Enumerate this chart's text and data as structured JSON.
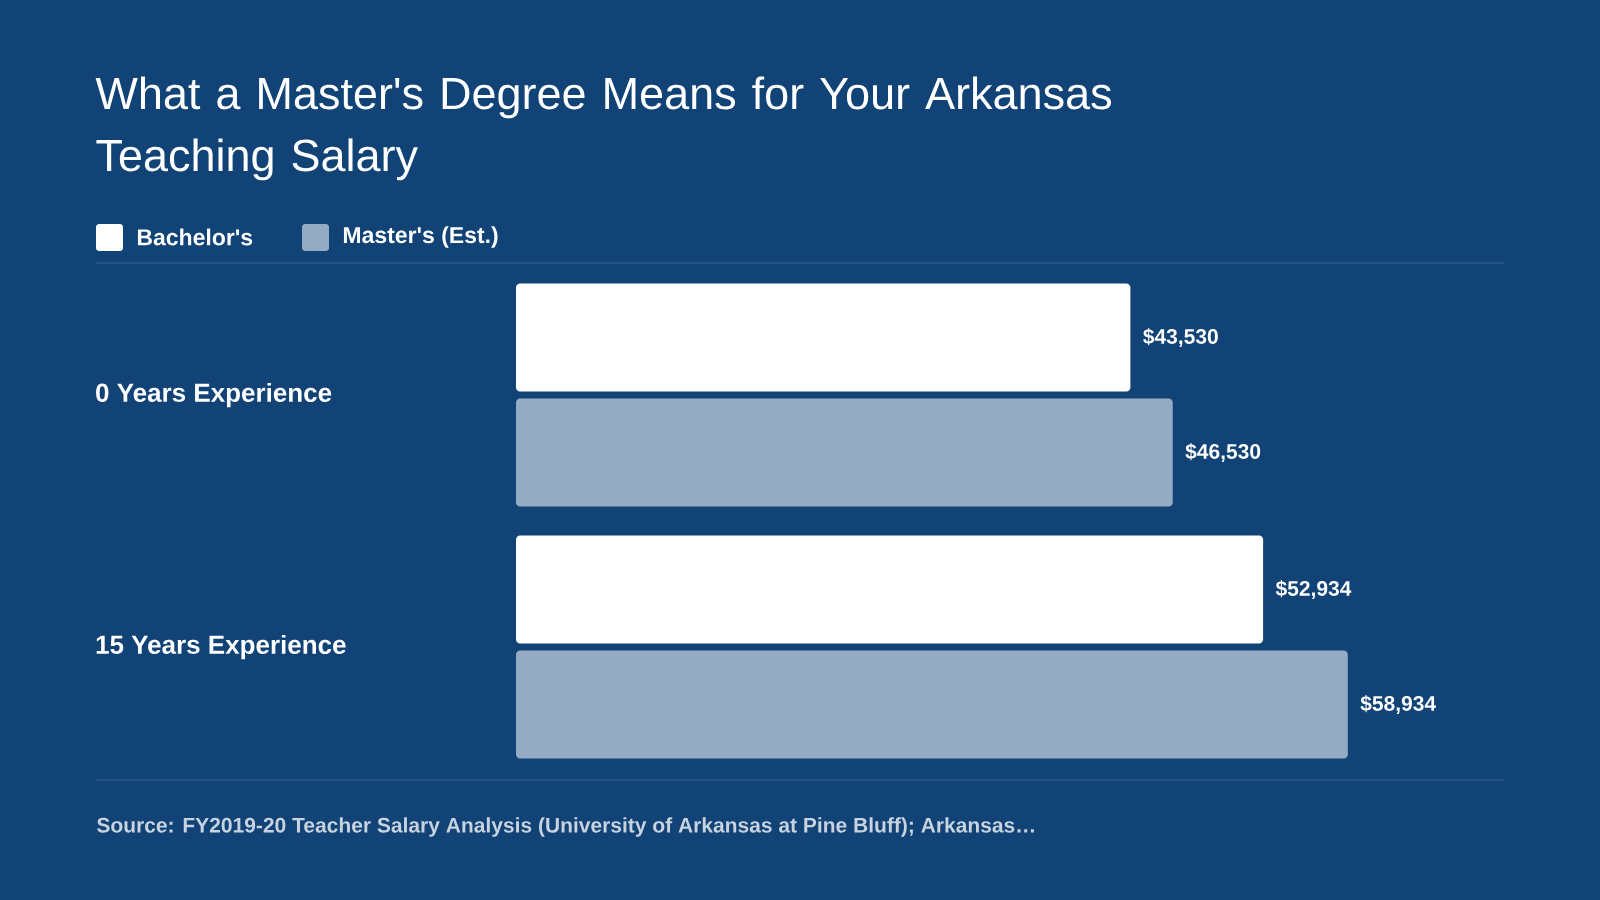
{
  "chart_data": {
    "type": "bar",
    "orientation": "horizontal",
    "title": "What a Master's Degree Means for Your Arkansas Teaching Salary",
    "categories": [
      "0 Years Experience",
      "15 Years Experience"
    ],
    "series": [
      {
        "name": "Bachelor's",
        "color": "#ffffff",
        "values": [
          43530,
          52934
        ],
        "value_labels": [
          "$43,530",
          "$52,934"
        ]
      },
      {
        "name": "Master's (Est.)",
        "color": "#95aac3",
        "values": [
          46530,
          58934
        ],
        "value_labels": [
          "$46,530",
          "$58,934"
        ]
      }
    ],
    "xlim": [
      0,
      70000
    ],
    "tick_labels": "y",
    "legend": "top left",
    "annotations": [
      "Source: FY2019-20 Teacher Salary Analysis (University of Arkansas at Pine Bluff); Arkansas…"
    ]
  }
}
